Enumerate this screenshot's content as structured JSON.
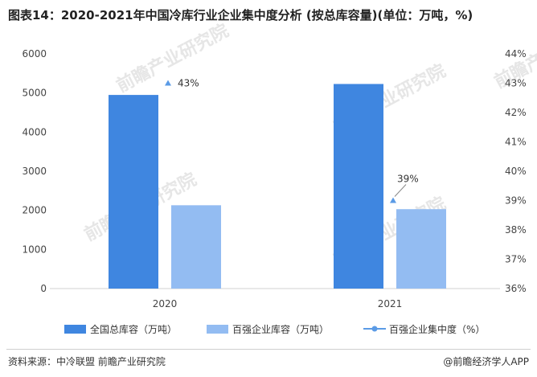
{
  "title": "图表14：2020-2021年中国冷库行业企业集中度分析 (按总库容量)(单位：万吨，%)",
  "watermark": "前瞻产业研究院",
  "source": "资料来源：中冷联盟 前瞻产业研究院",
  "credit": "@前瞻经济学人APP",
  "colors": {
    "total_capacity": "#3f86e0",
    "top100_capacity": "#93bcf2",
    "concentration": "#5b9be6"
  },
  "chart_data": {
    "type": "bar",
    "categories": [
      "2020",
      "2021"
    ],
    "series": [
      {
        "name": "全国总库容（万吨）",
        "axis": "left",
        "values": [
          4950,
          5230
        ]
      },
      {
        "name": "百强企业库容（万吨）",
        "axis": "left",
        "values": [
          2130,
          2030
        ]
      },
      {
        "name": "百强企业集中度（%）",
        "axis": "right",
        "type": "line",
        "values": [
          43,
          39
        ],
        "labels": [
          "43%",
          "39%"
        ]
      }
    ],
    "y_left": {
      "min": 0,
      "max": 6000,
      "ticks": [
        "0",
        "1000",
        "2000",
        "3000",
        "4000",
        "5000",
        "6000"
      ]
    },
    "y_right": {
      "min": 36,
      "max": 44,
      "ticks": [
        "36%",
        "37%",
        "38%",
        "39%",
        "40%",
        "41%",
        "42%",
        "43%",
        "44%"
      ]
    },
    "legend_position": "bottom",
    "grid": false
  }
}
